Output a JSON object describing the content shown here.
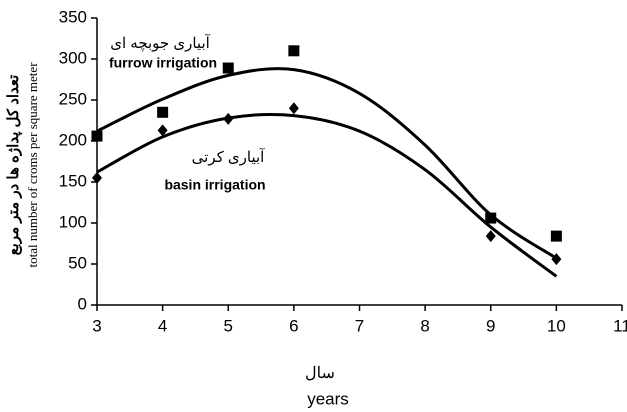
{
  "chart_data": {
    "type": "scatter",
    "ylabel": [
      "تعداد کل پداژه ها در متر مربع",
      "total number of croms per square meter"
    ],
    "xlabel": [
      "سال",
      "years"
    ],
    "annotations": [
      "آبیاری جوبچه ای",
      "furrow irrigation",
      "آبیاری کرتی",
      "basin irrigation"
    ],
    "x": [
      3,
      4,
      5,
      6,
      9,
      10
    ],
    "series": [
      {
        "marker": "square",
        "color": "#000000",
        "values": [
          206,
          235,
          289,
          310,
          106,
          84
        ]
      },
      {
        "marker": "diamond",
        "color": "#000000",
        "values": [
          155,
          213,
          227,
          240,
          84,
          56
        ]
      }
    ],
    "trend_x": [
      3,
      4,
      5,
      6,
      7,
      8,
      9,
      10
    ],
    "trends": [
      {
        "color": "#000000",
        "values": [
          212,
          251,
          280,
          287,
          258,
          195,
          110,
          57
        ]
      },
      {
        "color": "#000000",
        "values": [
          162,
          205,
          228,
          231,
          212,
          165,
          95,
          35
        ]
      }
    ],
    "xlim": [
      3,
      11
    ],
    "xticks": [
      3,
      4,
      5,
      6,
      7,
      8,
      9,
      10,
      11
    ],
    "ylim": [
      0,
      350
    ],
    "yticks": [
      0,
      50,
      100,
      150,
      200,
      250,
      300,
      350
    ],
    "grid": false
  }
}
